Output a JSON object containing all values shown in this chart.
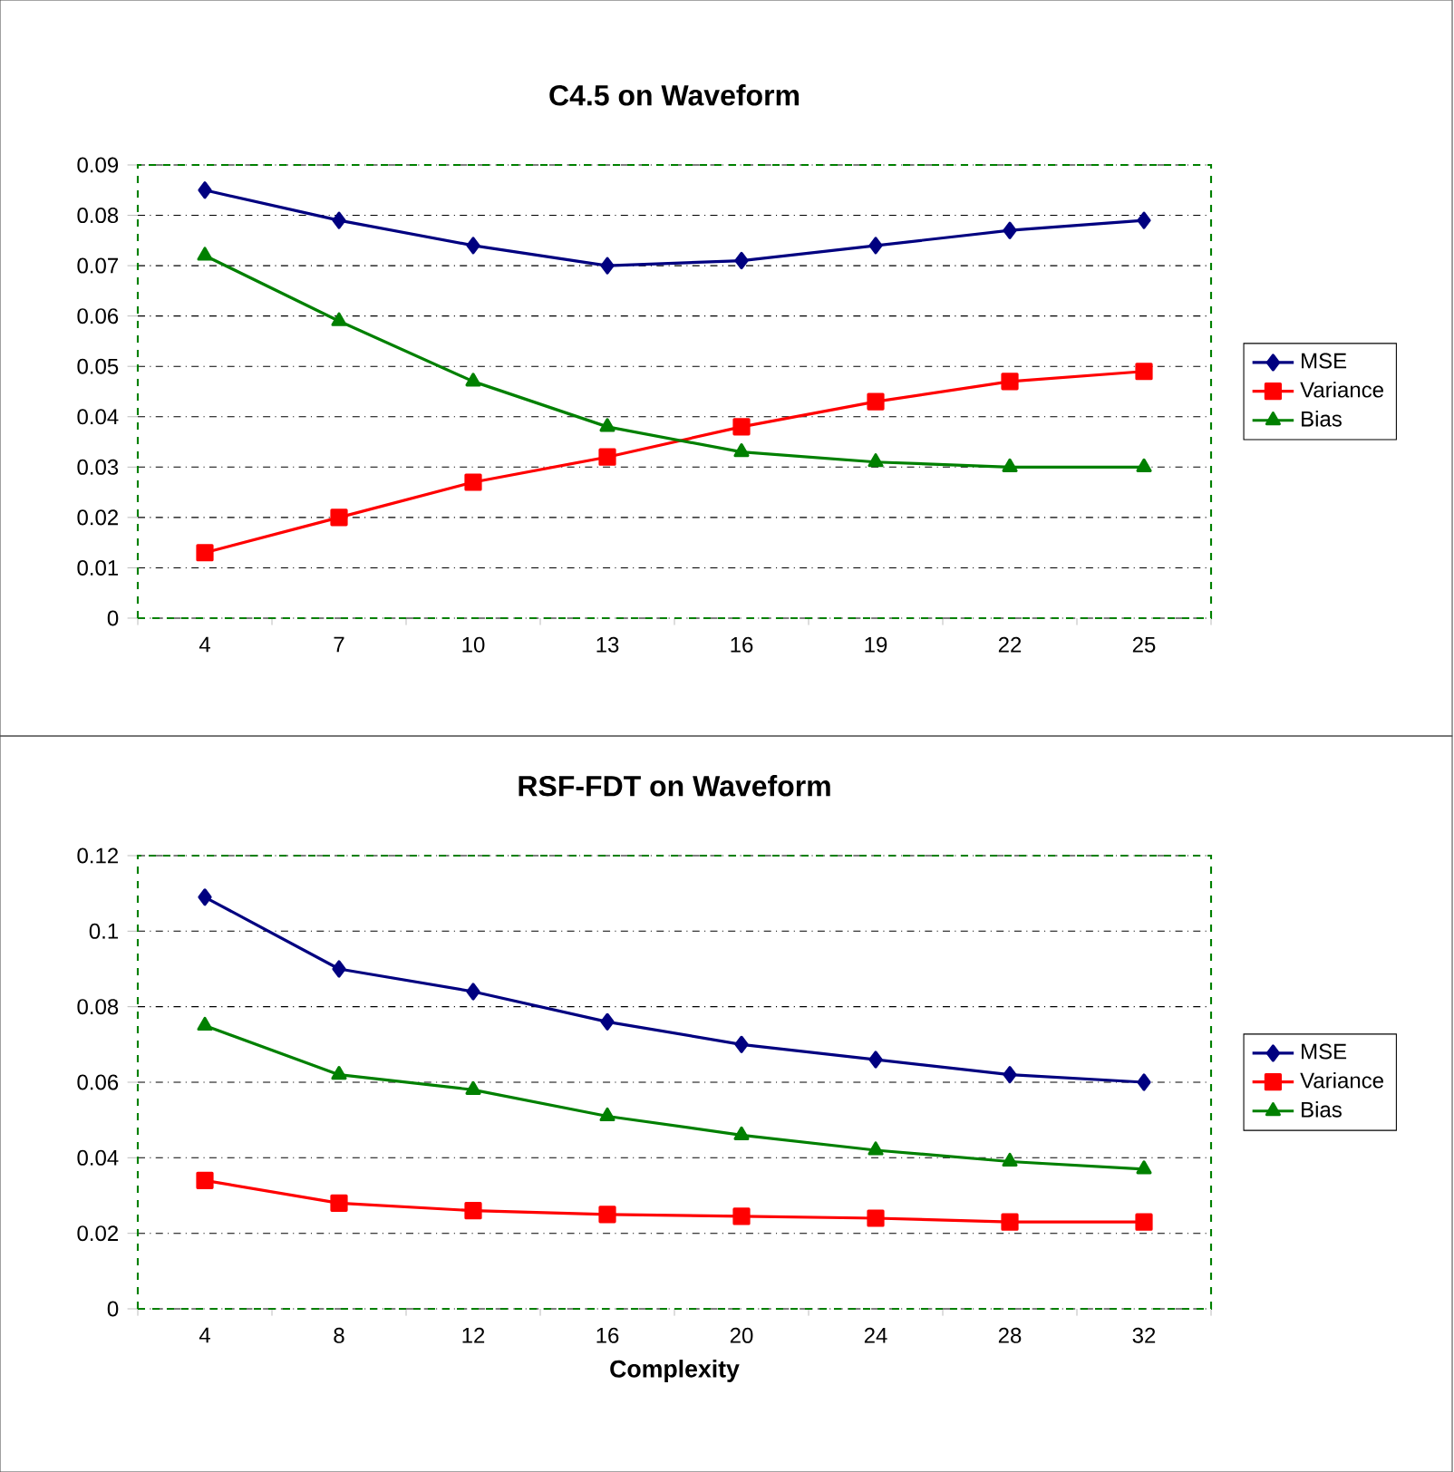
{
  "chart_data": [
    {
      "type": "line",
      "title": "C4.5 on Waveform",
      "categories": [
        "4",
        "7",
        "10",
        "13",
        "16",
        "19",
        "22",
        "25"
      ],
      "series": [
        {
          "name": "MSE",
          "color": "#000080",
          "marker": "diamond",
          "values": [
            0.085,
            0.079,
            0.074,
            0.07,
            0.071,
            0.074,
            0.077,
            0.079
          ]
        },
        {
          "name": "Variance",
          "color": "#ff0000",
          "marker": "square",
          "values": [
            0.013,
            0.02,
            0.027,
            0.032,
            0.038,
            0.043,
            0.047,
            0.049
          ]
        },
        {
          "name": "Bias",
          "color": "#008000",
          "marker": "triangle",
          "values": [
            0.072,
            0.059,
            0.047,
            0.038,
            0.033,
            0.031,
            0.03,
            0.03
          ]
        }
      ],
      "ylim": [
        0,
        0.09
      ],
      "yticks": [
        0,
        0.01,
        0.02,
        0.03,
        0.04,
        0.05,
        0.06,
        0.07,
        0.08,
        0.09
      ],
      "grid": "y",
      "legend": "right"
    },
    {
      "type": "line",
      "title": "RSF-FDT on Waveform",
      "xlabel": "Complexity",
      "categories": [
        "4",
        "8",
        "12",
        "16",
        "20",
        "24",
        "28",
        "32"
      ],
      "series": [
        {
          "name": "MSE",
          "color": "#000080",
          "marker": "diamond",
          "values": [
            0.109,
            0.09,
            0.084,
            0.076,
            0.07,
            0.066,
            0.062,
            0.06
          ]
        },
        {
          "name": "Variance",
          "color": "#ff0000",
          "marker": "square",
          "values": [
            0.034,
            0.028,
            0.026,
            0.025,
            0.0245,
            0.024,
            0.023,
            0.023
          ]
        },
        {
          "name": "Bias",
          "color": "#008000",
          "marker": "triangle",
          "values": [
            0.075,
            0.062,
            0.058,
            0.051,
            0.046,
            0.042,
            0.039,
            0.037
          ]
        }
      ],
      "ylim": [
        0,
        0.12
      ],
      "yticks": [
        0,
        0.02,
        0.04,
        0.06,
        0.08,
        0.1,
        0.12
      ],
      "grid": "y",
      "legend": "right"
    }
  ]
}
